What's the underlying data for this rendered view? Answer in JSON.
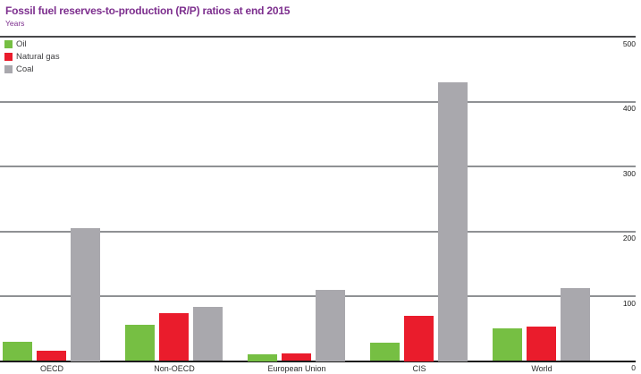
{
  "header": {
    "title": "Fossil fuel reserves-to-production (R/P) ratios at end 2015",
    "subtitle": "Years"
  },
  "legend": {
    "items": [
      {
        "label": "Oil",
        "color": "#76bf43"
      },
      {
        "label": "Natural gas",
        "color": "#ea1c2c"
      },
      {
        "label": "Coal",
        "color": "#a9a8ad"
      }
    ]
  },
  "chart_data": {
    "type": "bar",
    "title": "Fossil fuel reserves-to-production (R/P) ratios at end 2015",
    "ylabel": "Years",
    "xlabel": "",
    "categories": [
      "OECD",
      "Non-OECD",
      "European Union",
      "CIS",
      "World"
    ],
    "series": [
      {
        "name": "Oil",
        "color": "#76bf43",
        "values": [
          29,
          56,
          10,
          28,
          51
        ]
      },
      {
        "name": "Natural gas",
        "color": "#ea1c2c",
        "values": [
          16,
          74,
          12,
          70,
          53
        ]
      },
      {
        "name": "Coal",
        "color": "#a9a8ad",
        "values": [
          205,
          84,
          110,
          430,
          113
        ]
      }
    ],
    "ylim": [
      0,
      500
    ],
    "yticks": [
      0,
      100,
      200,
      300,
      400,
      500
    ],
    "axis_side": "right",
    "grid": true,
    "legend_position": "top-left"
  },
  "colors": {
    "title": "#7d2f8e",
    "grid_inner": "#8f9194",
    "grid_top": "#47484a",
    "baseline": "#1c1c1c"
  }
}
